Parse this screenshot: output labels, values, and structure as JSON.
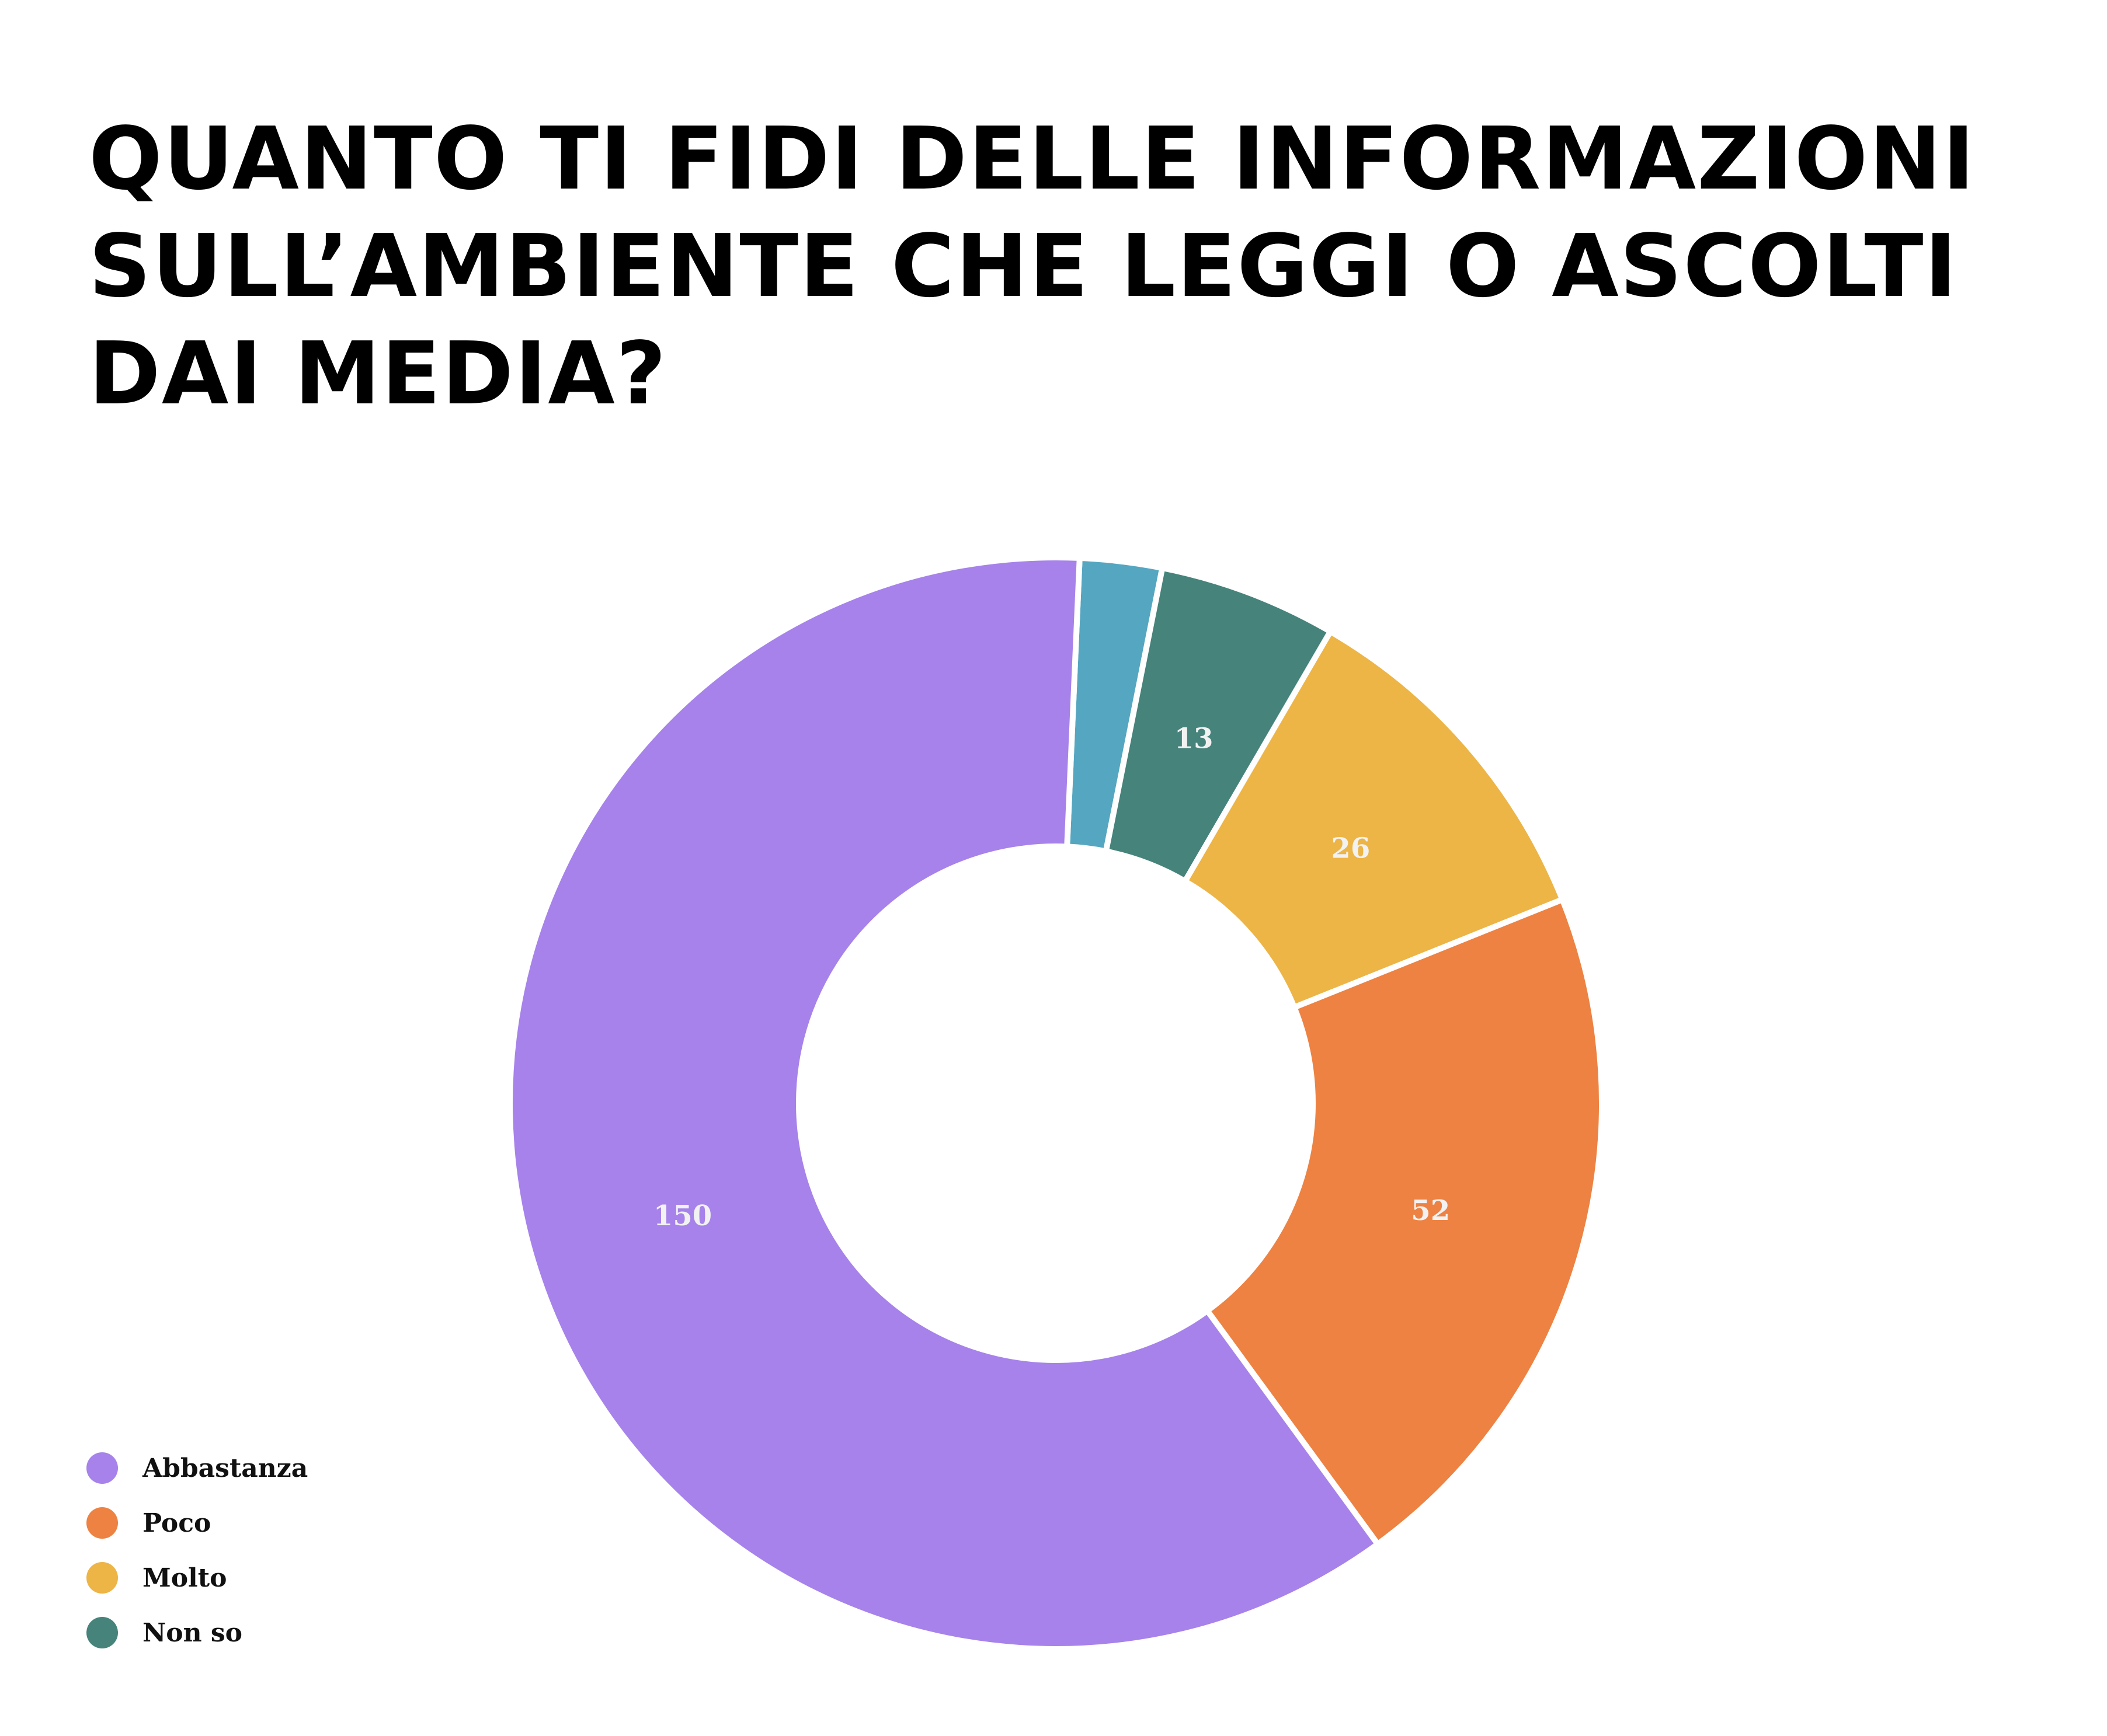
{
  "title_lines": [
    "QUANTO TI FIDI DELLE INFORMAZIONI",
    "SULL’AMBIENTE CHE LEGGI O ASCOLTI",
    "DAI MEDIA?"
  ],
  "chart_data": {
    "type": "pie",
    "style": "donut",
    "title": "QUANTO TI FIDI DELLE INFORMAZIONI SULL’AMBIENTE CHE LEGGI O ASCOLTI DAI MEDIA?",
    "legend_position": "bottom-left",
    "slices": [
      {
        "label": "",
        "value": 6,
        "color": "#55a6c0",
        "show_value": false
      },
      {
        "label": "Non so",
        "value": 13,
        "color": "#45837b",
        "show_value": true
      },
      {
        "label": "Molto",
        "value": 26,
        "color": "#edb446",
        "show_value": true
      },
      {
        "label": "Poco",
        "value": 52,
        "color": "#ed8242",
        "show_value": true
      },
      {
        "label": "Abbastanza",
        "value": 150,
        "color": "#a682ea",
        "show_value": true
      }
    ]
  },
  "legend": [
    {
      "label": "Abbastanza",
      "color": "#a682ea"
    },
    {
      "label": "Poco",
      "color": "#ed8242"
    },
    {
      "label": "Molto",
      "color": "#edb446"
    },
    {
      "label": "Non so",
      "color": "#45837b"
    }
  ]
}
